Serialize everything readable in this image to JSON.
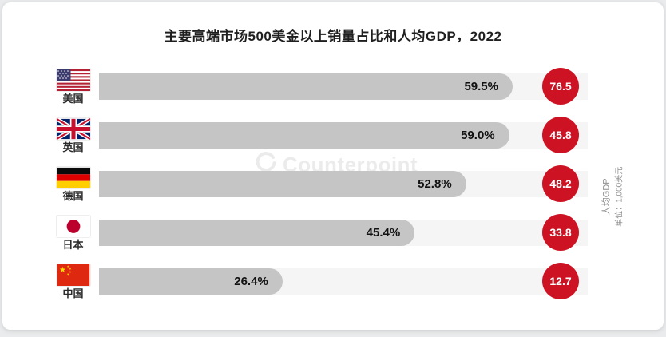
{
  "title": "主要高端市场500美金以上销量占比和人均GDP，2022",
  "watermark": {
    "logo": "counterpoint-logo-icon",
    "text": "Counterpoint"
  },
  "right_axis": {
    "label": "人均GDP",
    "unit": "单位：1,000美元"
  },
  "colors": {
    "title_text": "#1f1f1f",
    "bar_fill": "#c5c5c6",
    "bar_track": "#f5f5f6",
    "gdp_circle": "#cd1323"
  },
  "rows": [
    {
      "country": "美国",
      "flag": "us-flag-icon",
      "share_label": "59.5%",
      "share_value": 59.5,
      "gdp_label": "76.5",
      "gdp_value": 76.5
    },
    {
      "country": "英国",
      "flag": "uk-flag-icon",
      "share_label": "59.0%",
      "share_value": 59.0,
      "gdp_label": "45.8",
      "gdp_value": 45.8
    },
    {
      "country": "德国",
      "flag": "germany-flag-icon",
      "share_label": "52.8%",
      "share_value": 52.8,
      "gdp_label": "48.2",
      "gdp_value": 48.2
    },
    {
      "country": "日本",
      "flag": "japan-flag-icon",
      "share_label": "45.4%",
      "share_value": 45.4,
      "gdp_label": "33.8",
      "gdp_value": 33.8
    },
    {
      "country": "中国",
      "flag": "china-flag-icon",
      "share_label": "26.4%",
      "share_value": 26.4,
      "gdp_label": "12.7",
      "gdp_value": 12.7
    }
  ],
  "chart_data": {
    "type": "bar",
    "orientation": "horizontal",
    "title": "主要高端市场500美金以上销量占比和人均GDP，2022",
    "categories": [
      "美国",
      "英国",
      "德国",
      "日本",
      "中国"
    ],
    "series": [
      {
        "name": "500美金以上销量占比",
        "unit": "%",
        "values": [
          59.5,
          59.0,
          52.8,
          45.4,
          26.4
        ]
      },
      {
        "name": "人均GDP",
        "unit": "1,000美元",
        "values": [
          76.5,
          45.8,
          48.2,
          33.8,
          12.7
        ]
      }
    ],
    "xmax": 70.3,
    "grid": false,
    "legend": "none",
    "value_labels": "inside-bar-end and red-circle"
  }
}
